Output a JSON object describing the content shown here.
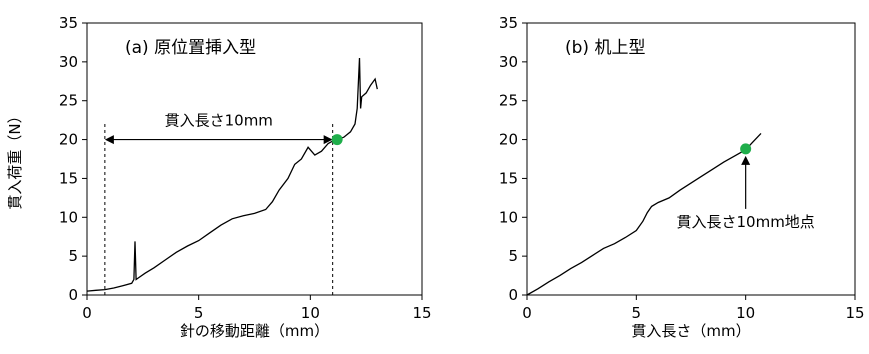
{
  "chart_data": [
    {
      "type": "line",
      "title": "(a) 原位置挿入型",
      "xlabel": "針の移動距離（mm）",
      "ylabel": "貫入荷重（N）",
      "xlim": [
        0,
        15
      ],
      "ylim": [
        0,
        35
      ],
      "xticks": [
        "0",
        "5",
        "10",
        "15"
      ],
      "yticks": [
        "0",
        "5",
        "10",
        "15",
        "20",
        "25",
        "30",
        "35"
      ],
      "series": [
        {
          "x": [
            0.0,
            0.4,
            0.8,
            1.2,
            1.6,
            2.0,
            2.1,
            2.15,
            2.2,
            2.3,
            2.6,
            3.0,
            3.5,
            4.0,
            4.5,
            5.0,
            5.5,
            6.0,
            6.5,
            7.0,
            7.5,
            8.0,
            8.3,
            8.6,
            9.0,
            9.3,
            9.6,
            9.9,
            10.2,
            10.5,
            10.8,
            11.0,
            11.2,
            11.5,
            11.8,
            12.0,
            12.1,
            12.2,
            12.25,
            12.3,
            12.5,
            12.7,
            12.9,
            13.0
          ],
          "y": [
            0.5,
            0.6,
            0.7,
            0.9,
            1.2,
            1.5,
            2.0,
            6.9,
            2.0,
            2.2,
            2.8,
            3.5,
            4.5,
            5.5,
            6.3,
            7.0,
            8.0,
            9.0,
            9.8,
            10.2,
            10.5,
            11.0,
            12.0,
            13.5,
            15.0,
            16.8,
            17.5,
            19.0,
            18.0,
            18.5,
            19.5,
            19.8,
            20.0,
            20.3,
            21.0,
            22.0,
            24.0,
            30.5,
            24.0,
            25.5,
            26.0,
            27.0,
            27.8,
            26.5
          ]
        }
      ],
      "markers": [
        {
          "x": 11.2,
          "y": 20.0,
          "color": "#1fae4b"
        }
      ],
      "dashed_verticals": [
        {
          "x": 0.8,
          "y_top": 22.0
        },
        {
          "x": 11.0,
          "y_top": 22.0
        }
      ],
      "span_annotation": {
        "x_from": 0.8,
        "x_to": 11.0,
        "y": 20.0,
        "label": "貫入長さ10mm"
      }
    },
    {
      "type": "line",
      "title": "(b) 机上型",
      "xlabel": "貫入長さ（mm）",
      "ylabel": "",
      "xlim": [
        0,
        15
      ],
      "ylim": [
        0,
        35
      ],
      "xticks": [
        "0",
        "5",
        "10",
        "15"
      ],
      "yticks": [
        "0",
        "5",
        "10",
        "15",
        "20",
        "25",
        "30",
        "35"
      ],
      "series": [
        {
          "x": [
            0.0,
            0.5,
            1.0,
            1.5,
            2.0,
            2.5,
            3.0,
            3.5,
            4.0,
            4.5,
            5.0,
            5.3,
            5.5,
            5.7,
            6.0,
            6.5,
            7.0,
            7.5,
            8.0,
            8.5,
            9.0,
            9.5,
            10.0,
            10.3,
            10.7
          ],
          "y": [
            0.0,
            0.8,
            1.7,
            2.5,
            3.4,
            4.2,
            5.1,
            6.0,
            6.6,
            7.4,
            8.3,
            9.5,
            10.6,
            11.4,
            11.9,
            12.5,
            13.5,
            14.4,
            15.3,
            16.2,
            17.1,
            17.9,
            18.7,
            19.6,
            20.8
          ]
        }
      ],
      "markers": [
        {
          "x": 10.0,
          "y": 18.8,
          "color": "#1fae4b"
        }
      ],
      "point_annotation": {
        "x": 10.0,
        "y": 18.8,
        "label": "貫入長さ10mm地点"
      }
    }
  ]
}
